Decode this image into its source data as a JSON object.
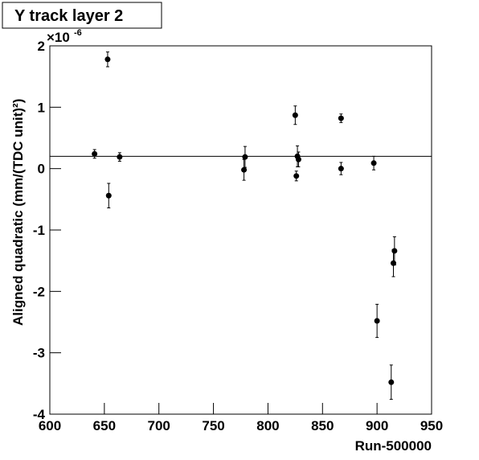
{
  "chart_data": {
    "type": "scatter",
    "title": "Y track layer 2",
    "xlabel": "Run-500000",
    "ylabel": "Aligned quadratic (mm/(TDC unit)²)",
    "y_multiplier": {
      "base": "×10",
      "exponent": "-6"
    },
    "x": [
      641,
      653,
      654,
      664,
      778,
      779,
      825,
      826,
      827,
      828,
      867,
      867,
      897,
      900,
      913,
      915,
      916
    ],
    "values": [
      0.24,
      1.78,
      -0.44,
      0.19,
      -0.02,
      0.19,
      0.87,
      -0.12,
      0.2,
      0.15,
      0.82,
      0.0,
      0.09,
      -2.48,
      -3.48,
      -1.54,
      -1.34
    ],
    "errors": [
      0.07,
      0.12,
      0.2,
      0.07,
      0.17,
      0.17,
      0.15,
      0.08,
      0.17,
      0.12,
      0.07,
      0.1,
      0.11,
      0.27,
      0.28,
      0.22,
      0.23
    ],
    "hline": 0.2,
    "color": "#000000",
    "xlim": [
      600,
      950
    ],
    "xticks": [
      600,
      650,
      700,
      750,
      800,
      850,
      900,
      950
    ],
    "ylim": [
      -4,
      2
    ],
    "yticks": [
      -4,
      -3,
      -2,
      -1,
      0,
      1,
      2
    ]
  }
}
